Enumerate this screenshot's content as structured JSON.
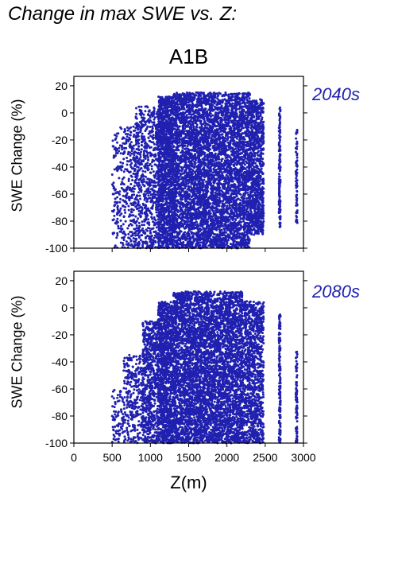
{
  "page_title": "Change in max SWE vs. Z:",
  "scenario": "A1B",
  "chart_data": [
    {
      "type": "scatter",
      "annotation": "2040s",
      "ylabel": "SWE Change (%)",
      "xlabel": "",
      "xlim": [
        0,
        3000
      ],
      "ylim": [
        -100,
        27
      ],
      "yticks": [
        20,
        0,
        -20,
        -40,
        -60,
        -80,
        -100
      ],
      "xticks": [
        0,
        500,
        1000,
        1500,
        2000,
        2500,
        3000
      ],
      "show_xtick_labels": false,
      "point_color": "#2020b0",
      "grid": false,
      "point_groups": [
        {
          "x": [
            500,
            600
          ],
          "y": [
            -100,
            -15
          ],
          "n": 90
        },
        {
          "x": [
            600,
            800
          ],
          "y": [
            -100,
            -10
          ],
          "n": 260
        },
        {
          "x": [
            800,
            1100
          ],
          "y": [
            -100,
            5
          ],
          "n": 700
        },
        {
          "x": [
            1100,
            1300
          ],
          "y": [
            -100,
            12
          ],
          "n": 1400
        },
        {
          "x": [
            1300,
            2300
          ],
          "y": [
            -100,
            15
          ],
          "n": 5200
        },
        {
          "x": [
            2300,
            2480
          ],
          "y": [
            -90,
            10
          ],
          "n": 900
        },
        {
          "x": [
            2680,
            2700
          ],
          "y": [
            -85,
            5
          ],
          "n": 140
        },
        {
          "x": [
            2900,
            2920
          ],
          "y": [
            -83,
            -12
          ],
          "n": 80
        }
      ]
    },
    {
      "type": "scatter",
      "annotation": "2080s",
      "ylabel": "SWE Change (%)",
      "xlabel": "Z(m)",
      "xlim": [
        0,
        3000
      ],
      "ylim": [
        -100,
        27
      ],
      "yticks": [
        20,
        0,
        -20,
        -40,
        -60,
        -80,
        -100
      ],
      "xticks": [
        0,
        500,
        1000,
        1500,
        2000,
        2500,
        3000
      ],
      "xtick_labels": [
        "0",
        "500",
        "1000",
        "1500",
        "2000",
        "2500",
        "3000"
      ],
      "show_xtick_labels": true,
      "point_color": "#2020b0",
      "grid": false,
      "point_groups": [
        {
          "x": [
            500,
            650
          ],
          "y": [
            -100,
            -60
          ],
          "n": 80
        },
        {
          "x": [
            650,
            900
          ],
          "y": [
            -100,
            -35
          ],
          "n": 300
        },
        {
          "x": [
            900,
            1100
          ],
          "y": [
            -100,
            -10
          ],
          "n": 650
        },
        {
          "x": [
            1100,
            1300
          ],
          "y": [
            -100,
            5
          ],
          "n": 1200
        },
        {
          "x": [
            1300,
            2200
          ],
          "y": [
            -100,
            12
          ],
          "n": 4800
        },
        {
          "x": [
            2200,
            2480
          ],
          "y": [
            -100,
            5
          ],
          "n": 1100
        },
        {
          "x": [
            2680,
            2700
          ],
          "y": [
            -100,
            -5
          ],
          "n": 160
        },
        {
          "x": [
            2900,
            2920
          ],
          "y": [
            -100,
            -32
          ],
          "n": 90
        }
      ]
    }
  ]
}
